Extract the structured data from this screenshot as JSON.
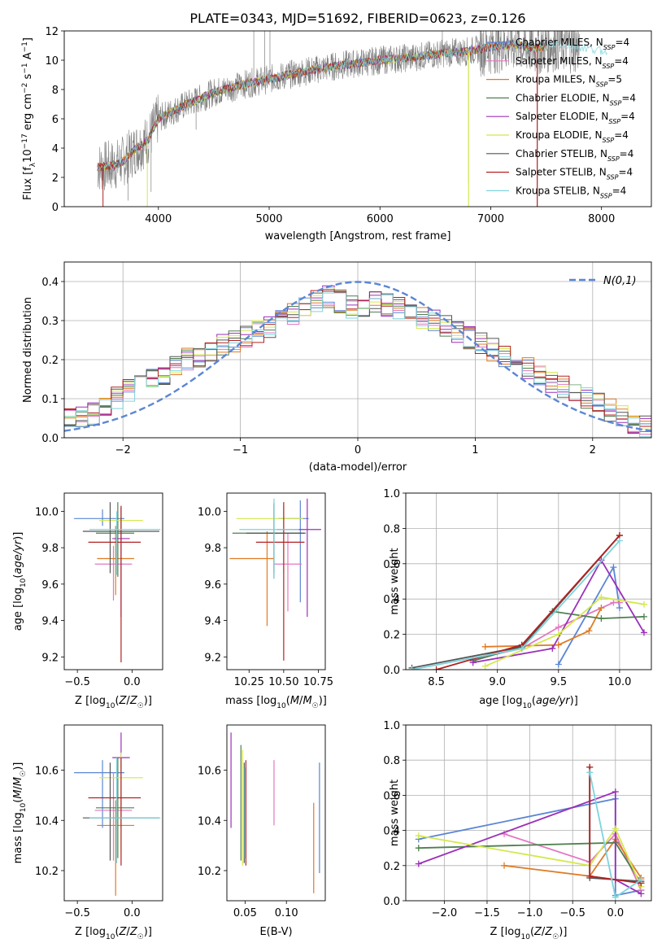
{
  "figure": {
    "title": "PLATE=0343, MJD=51692, FIBERID=0623, z=0.126"
  },
  "colors": {
    "Chabrier MILES": "#5b86d4",
    "Salpeter MILES": "#e377c2",
    "Kroupa MILES": "#e07b25",
    "Chabrier ELODIE": "#4f7f4f",
    "Salpeter ELODIE": "#9b30b8",
    "Kroupa ELODIE": "#d4e84c",
    "Chabrier STELIB": "#555555",
    "Salpeter STELIB": "#b22222",
    "Kroupa STELIB": "#7fd3dc",
    "data": "#808080",
    "gaussian": "#5b86d4"
  },
  "chart_data": [
    {
      "id": "spectrum",
      "type": "line",
      "xlabel": "wavelength [Angstrom, rest frame]",
      "ylabel": "Flux [f_λ10^-17 erg cm^-2 s^-1 A^-1]",
      "xlim": [
        3150,
        8450
      ],
      "ylim": [
        0,
        12
      ],
      "xticks": [
        4000,
        5000,
        6000,
        7000,
        8000
      ],
      "yticks": [
        0,
        2,
        4,
        6,
        8,
        10,
        12
      ],
      "legend_position": "top-right",
      "series": [
        {
          "name": "Chabrier MILES",
          "n_ssp": 4
        },
        {
          "name": "Salpeter MILES",
          "n_ssp": 4
        },
        {
          "name": "Kroupa MILES",
          "n_ssp": 5
        },
        {
          "name": "Chabrier ELODIE",
          "n_ssp": 4
        },
        {
          "name": "Salpeter ELODIE",
          "n_ssp": 4
        },
        {
          "name": "Kroupa ELODIE",
          "n_ssp": 4
        },
        {
          "name": "Chabrier STELIB",
          "n_ssp": 4
        },
        {
          "name": "Salpeter STELIB",
          "n_ssp": 4
        },
        {
          "name": "Kroupa STELIB",
          "n_ssp": 4
        }
      ],
      "continuum": {
        "x": [
          3450,
          3600,
          3700,
          3800,
          3900,
          4000,
          4200,
          4500,
          4800,
          5000,
          5300,
          5600,
          6000,
          6300,
          6600,
          6800,
          7000,
          7200,
          7400,
          7600,
          7800,
          8050
        ],
        "y": [
          2.7,
          2.8,
          3.2,
          4.0,
          4.5,
          6.0,
          6.8,
          7.8,
          8.4,
          8.7,
          9.2,
          9.6,
          10.0,
          10.2,
          10.5,
          10.6,
          10.9,
          11.1,
          10.8,
          11.1,
          10.9,
          10.6
        ]
      }
    },
    {
      "id": "residuals",
      "type": "step",
      "xlabel": "(data-model)/error",
      "ylabel": "Normed distribution",
      "xlim": [
        -2.5,
        2.5
      ],
      "ylim": [
        0,
        0.45
      ],
      "xticks": [
        -2,
        -1,
        0,
        1,
        2
      ],
      "yticks": [
        0.0,
        0.1,
        0.2,
        0.3,
        0.4
      ],
      "grid": true,
      "legend_position": "top-right",
      "gaussian": {
        "name": "N(0,1)",
        "mean": 0,
        "sigma": 1
      },
      "bin_edges": [
        -2.5,
        -2.4,
        -2.3,
        -2.2,
        -2.1,
        -2.0,
        -1.9,
        -1.8,
        -1.7,
        -1.6,
        -1.5,
        -1.4,
        -1.3,
        -1.2,
        -1.1,
        -1.0,
        -0.9,
        -0.8,
        -0.7,
        -0.6,
        -0.5,
        -0.4,
        -0.3,
        -0.2,
        -0.1,
        0.0,
        0.1,
        0.2,
        0.3,
        0.4,
        0.5,
        0.6,
        0.7,
        0.8,
        0.9,
        1.0,
        1.1,
        1.2,
        1.3,
        1.4,
        1.5,
        1.6,
        1.7,
        1.8,
        1.9,
        2.0,
        2.1,
        2.2,
        2.3,
        2.4,
        2.5
      ],
      "mean_hist": [
        0.045,
        0.05,
        0.06,
        0.085,
        0.1,
        0.12,
        0.14,
        0.15,
        0.165,
        0.185,
        0.2,
        0.21,
        0.22,
        0.235,
        0.245,
        0.26,
        0.27,
        0.285,
        0.3,
        0.32,
        0.34,
        0.35,
        0.36,
        0.35,
        0.335,
        0.33,
        0.345,
        0.34,
        0.33,
        0.32,
        0.305,
        0.3,
        0.29,
        0.27,
        0.255,
        0.24,
        0.225,
        0.21,
        0.19,
        0.175,
        0.16,
        0.14,
        0.13,
        0.12,
        0.1,
        0.085,
        0.07,
        0.055,
        0.04,
        0.03
      ]
    },
    {
      "id": "age_vs_Z",
      "type": "errorbar",
      "xlabel": "Z [log10(Z/Z☉)]",
      "ylabel": "age  [log10(age/yr)]",
      "xlim": [
        -0.62,
        0.28
      ],
      "ylim": [
        9.13,
        10.1
      ],
      "xticks": [
        -0.5,
        0.0
      ],
      "yticks": [
        9.2,
        9.4,
        9.6,
        9.8,
        10.0
      ],
      "points": [
        {
          "series": "Chabrier MILES",
          "x": -0.27,
          "xerr": [
            0.26,
            0.2
          ],
          "y": 9.96,
          "yerr": [
            0.04,
            0.05
          ]
        },
        {
          "series": "Salpeter MILES",
          "x": -0.17,
          "xerr": [
            0.17,
            0.17
          ],
          "y": 9.71,
          "yerr": [
            0.2,
            0.1
          ]
        },
        {
          "series": "Kroupa MILES",
          "x": -0.15,
          "xerr": [
            0.17,
            0.17
          ],
          "y": 9.74,
          "yerr": [
            0.2,
            0.18
          ]
        },
        {
          "series": "Chabrier ELODIE",
          "x": -0.13,
          "xerr": [
            0.2,
            0.15
          ],
          "y": 9.88,
          "yerr": [
            0.24,
            0.17
          ]
        },
        {
          "series": "Salpeter ELODIE",
          "x": -0.1,
          "xerr": [
            0.08,
            0.08
          ],
          "y": 9.85,
          "yerr": [
            0.43,
            0.17
          ]
        },
        {
          "series": "Kroupa ELODIE",
          "x": -0.1,
          "xerr": [
            0.2,
            0.2
          ],
          "y": 9.95,
          "yerr": [
            0.05,
            0.04
          ]
        },
        {
          "series": "Chabrier STELIB",
          "x": -0.2,
          "xerr": [
            0.25,
            0.45
          ],
          "y": 9.89,
          "yerr": [
            0.23,
            0.16
          ]
        },
        {
          "series": "Salpeter STELIB",
          "x": -0.1,
          "xerr": [
            0.3,
            0.18
          ],
          "y": 9.83,
          "yerr": [
            0.66,
            0.2
          ]
        },
        {
          "series": "Kroupa STELIB",
          "x": -0.14,
          "xerr": [
            0.25,
            0.4
          ],
          "y": 9.9,
          "yerr": [
            0.25,
            0.1
          ]
        }
      ]
    },
    {
      "id": "age_vs_mass",
      "type": "errorbar",
      "xlabel": "mass [log10(M/M☉)]",
      "ylabel": "",
      "xlim": [
        10.09,
        10.8
      ],
      "ylim": [
        9.13,
        10.1
      ],
      "xticks": [
        10.25,
        10.5,
        10.75
      ],
      "xticklabels": [
        "10.25",
        "10.50",
        "10.75"
      ],
      "yticks": [
        9.2,
        9.4,
        9.6,
        9.8,
        10.0
      ],
      "points": [
        {
          "series": "Chabrier MILES",
          "x": 10.62,
          "xerr": [
            0.16,
            0.06
          ],
          "y": 9.96,
          "yerr": [
            0.46,
            0.1
          ]
        },
        {
          "series": "Salpeter MILES",
          "x": 10.53,
          "xerr": [
            0.1,
            0.1
          ],
          "y": 9.71,
          "yerr": [
            0.26,
            0.17
          ]
        },
        {
          "series": "Kroupa MILES",
          "x": 10.38,
          "xerr": [
            0.27,
            0.05
          ],
          "y": 9.74,
          "yerr": [
            0.37,
            0.15
          ]
        },
        {
          "series": "Chabrier ELODIE",
          "x": 10.43,
          "xerr": [
            0.3,
            0.23
          ],
          "y": 9.88,
          "yerr": [
            0.22,
            0.17
          ]
        },
        {
          "series": "Salpeter ELODIE",
          "x": 10.67,
          "xerr": [
            0.22,
            0.1
          ],
          "y": 9.9,
          "yerr": [
            0.48,
            0.17
          ]
        },
        {
          "series": "Kroupa ELODIE",
          "x": 10.5,
          "xerr": [
            0.34,
            0.14
          ],
          "y": 9.96,
          "yerr": [
            0.3,
            0.07
          ]
        },
        {
          "series": "Chabrier STELIB",
          "x": 10.43,
          "xerr": [
            0.2,
            0.22
          ],
          "y": 9.88,
          "yerr": [
            0.25,
            0.16
          ]
        },
        {
          "series": "Salpeter STELIB",
          "x": 10.5,
          "xerr": [
            0.2,
            0.15
          ],
          "y": 9.83,
          "yerr": [
            0.65,
            0.22
          ]
        },
        {
          "series": "Kroupa STELIB",
          "x": 10.43,
          "xerr": [
            0.25,
            0.18
          ],
          "y": 9.9,
          "yerr": [
            0.27,
            0.17
          ]
        }
      ]
    },
    {
      "id": "weight_vs_age",
      "type": "line",
      "xlabel": "age  [log10(age/yr)]",
      "ylabel": "mass weight",
      "xlim": [
        8.25,
        10.26
      ],
      "ylim": [
        0,
        1.0
      ],
      "xticks": [
        8.5,
        9.0,
        9.5,
        10.0
      ],
      "yticks": [
        0.0,
        0.2,
        0.4,
        0.6,
        0.8,
        1.0
      ],
      "grid": true,
      "series": [
        {
          "name": "Chabrier MILES",
          "x": [
            9.5,
            9.95,
            10.0
          ],
          "y": [
            0.03,
            0.58,
            0.35
          ]
        },
        {
          "name": "Salpeter MILES",
          "x": [
            8.8,
            9.2,
            9.5,
            9.95,
            10.0
          ],
          "y": [
            0.06,
            0.12,
            0.24,
            0.38,
            0.38
          ]
        },
        {
          "name": "Kroupa MILES",
          "x": [
            8.9,
            9.5,
            9.75,
            9.85
          ],
          "y": [
            0.13,
            0.14,
            0.22,
            0.35
          ]
        },
        {
          "name": "Chabrier ELODIE",
          "x": [
            8.8,
            9.2,
            9.45,
            9.85,
            10.2
          ],
          "y": [
            0.05,
            0.13,
            0.33,
            0.29,
            0.3
          ]
        },
        {
          "name": "Salpeter ELODIE",
          "x": [
            8.8,
            9.45,
            9.85,
            10.2
          ],
          "y": [
            0.04,
            0.12,
            0.62,
            0.21
          ]
        },
        {
          "name": "Kroupa ELODIE",
          "x": [
            8.9,
            9.5,
            9.85,
            10.2
          ],
          "y": [
            0.02,
            0.2,
            0.41,
            0.37
          ]
        },
        {
          "name": "Chabrier STELIB",
          "x": [
            8.3,
            9.2,
            10.0
          ],
          "y": [
            0.01,
            0.13,
            0.76
          ]
        },
        {
          "name": "Salpeter STELIB",
          "x": [
            8.5,
            9.2,
            10.0
          ],
          "y": [
            0.0,
            0.14,
            0.76
          ]
        },
        {
          "name": "Kroupa STELIB",
          "x": [
            8.3,
            9.2,
            10.0
          ],
          "y": [
            0.0,
            0.12,
            0.73
          ]
        }
      ]
    },
    {
      "id": "mass_vs_Z",
      "type": "errorbar",
      "xlabel": "Z [log10(Z/Z☉)]",
      "ylabel": "mass [log10(M/M☉)]",
      "xlim": [
        -0.62,
        0.28
      ],
      "ylim": [
        10.08,
        10.78
      ],
      "xticks": [
        -0.5,
        0.0
      ],
      "yticks": [
        10.2,
        10.4,
        10.6
      ],
      "points": [
        {
          "series": "Chabrier MILES",
          "x": -0.27,
          "xerr": [
            0.26,
            0.2
          ],
          "y": 10.59,
          "yerr": [
            0.22,
            0.05
          ]
        },
        {
          "series": "Salpeter MILES",
          "x": -0.17,
          "xerr": [
            0.17,
            0.17
          ],
          "y": 10.44,
          "yerr": [
            0.2,
            0.15
          ]
        },
        {
          "series": "Kroupa MILES",
          "x": -0.15,
          "xerr": [
            0.17,
            0.17
          ],
          "y": 10.38,
          "yerr": [
            0.28,
            0.1
          ]
        },
        {
          "series": "Chabrier ELODIE",
          "x": -0.13,
          "xerr": [
            0.2,
            0.15
          ],
          "y": 10.45,
          "yerr": [
            0.2,
            0.2
          ]
        },
        {
          "series": "Salpeter ELODIE",
          "x": -0.1,
          "xerr": [
            0.08,
            0.08
          ],
          "y": 10.65,
          "yerr": [
            0.28,
            0.1
          ]
        },
        {
          "series": "Kroupa ELODIE",
          "x": -0.1,
          "xerr": [
            0.2,
            0.2
          ],
          "y": 10.57,
          "yerr": [
            0.3,
            0.1
          ]
        },
        {
          "series": "Chabrier STELIB",
          "x": -0.2,
          "xerr": [
            0.25,
            0.45
          ],
          "y": 10.41,
          "yerr": [
            0.17,
            0.22
          ]
        },
        {
          "series": "Salpeter STELIB",
          "x": -0.1,
          "xerr": [
            0.3,
            0.18
          ],
          "y": 10.49,
          "yerr": [
            0.27,
            0.16
          ]
        },
        {
          "series": "Kroupa STELIB",
          "x": -0.14,
          "xerr": [
            0.25,
            0.4
          ],
          "y": 10.41,
          "yerr": [
            0.18,
            0.24
          ]
        }
      ]
    },
    {
      "id": "mass_vs_ebv",
      "type": "errorbar",
      "xlabel": "E(B-V)",
      "ylabel": "",
      "xlim": [
        0.028,
        0.147
      ],
      "ylim": [
        10.08,
        10.78
      ],
      "xticks": [
        0.05,
        0.1
      ],
      "xticklabels": [
        "0.05",
        "0.10"
      ],
      "yticks": [
        10.2,
        10.4,
        10.6
      ],
      "points": [
        {
          "series": "Chabrier MILES",
          "x": 0.14,
          "y": 10.41,
          "yerr": [
            0.22,
            0.22
          ]
        },
        {
          "series": "Salpeter MILES",
          "x": 0.085,
          "y": 10.51,
          "yerr": [
            0.13,
            0.13
          ]
        },
        {
          "series": "Kroupa MILES",
          "x": 0.133,
          "y": 10.29,
          "yerr": [
            0.18,
            0.18
          ]
        },
        {
          "series": "Chabrier ELODIE",
          "x": 0.045,
          "y": 10.47,
          "yerr": [
            0.23,
            0.23
          ]
        },
        {
          "series": "Salpeter ELODIE",
          "x": 0.033,
          "y": 10.56,
          "yerr": [
            0.19,
            0.19
          ]
        },
        {
          "series": "Kroupa ELODIE",
          "x": 0.047,
          "y": 10.45,
          "yerr": [
            0.23,
            0.23
          ]
        },
        {
          "series": "Chabrier STELIB",
          "x": 0.049,
          "y": 10.43,
          "yerr": [
            0.2,
            0.2
          ]
        },
        {
          "series": "Salpeter STELIB",
          "x": 0.051,
          "y": 10.43,
          "yerr": [
            0.21,
            0.21
          ]
        },
        {
          "series": "Kroupa STELIB",
          "x": 0.05,
          "y": 10.43,
          "yerr": [
            0.18,
            0.18
          ]
        }
      ]
    },
    {
      "id": "weight_vs_Z",
      "type": "line",
      "xlabel": "Z [log10(Z/Z☉)]",
      "ylabel": "mass weight",
      "xlim": [
        -2.45,
        0.42
      ],
      "ylim": [
        0,
        1.0
      ],
      "xticks": [
        -2.0,
        -1.5,
        -1.0,
        -0.5,
        0.0
      ],
      "yticks": [
        0.0,
        0.2,
        0.4,
        0.6,
        0.8,
        1.0
      ],
      "grid": true,
      "series": [
        {
          "name": "Chabrier MILES",
          "x": [
            -2.3,
            0.0,
            0.0,
            0.3
          ],
          "y": [
            0.35,
            0.58,
            0.03,
            0.06
          ]
        },
        {
          "name": "Salpeter MILES",
          "x": [
            -1.3,
            -0.3,
            0.0,
            0.3
          ],
          "y": [
            0.38,
            0.22,
            0.38,
            0.06
          ]
        },
        {
          "name": "Kroupa MILES",
          "x": [
            -1.3,
            -0.3,
            0.0,
            0.3
          ],
          "y": [
            0.2,
            0.14,
            0.35,
            0.13
          ]
        },
        {
          "name": "Chabrier ELODIE",
          "x": [
            -2.3,
            0.0,
            0.3
          ],
          "y": [
            0.3,
            0.33,
            0.1
          ]
        },
        {
          "name": "Salpeter ELODIE",
          "x": [
            -2.3,
            0.0,
            0.0,
            0.3
          ],
          "y": [
            0.21,
            0.62,
            0.12,
            0.04
          ]
        },
        {
          "name": "Kroupa ELODIE",
          "x": [
            -2.3,
            -0.3,
            0.0,
            0.3
          ],
          "y": [
            0.37,
            0.2,
            0.41,
            0.08
          ]
        },
        {
          "name": "Chabrier STELIB",
          "x": [
            -0.3,
            -0.3,
            0.3
          ],
          "y": [
            0.76,
            0.13,
            0.11
          ]
        },
        {
          "name": "Salpeter STELIB",
          "x": [
            -0.3,
            -0.3,
            0.3
          ],
          "y": [
            0.76,
            0.14,
            0.1
          ]
        },
        {
          "name": "Kroupa STELIB",
          "x": [
            -0.3,
            0.0,
            0.3
          ],
          "y": [
            0.73,
            0.02,
            0.12
          ]
        }
      ]
    }
  ]
}
